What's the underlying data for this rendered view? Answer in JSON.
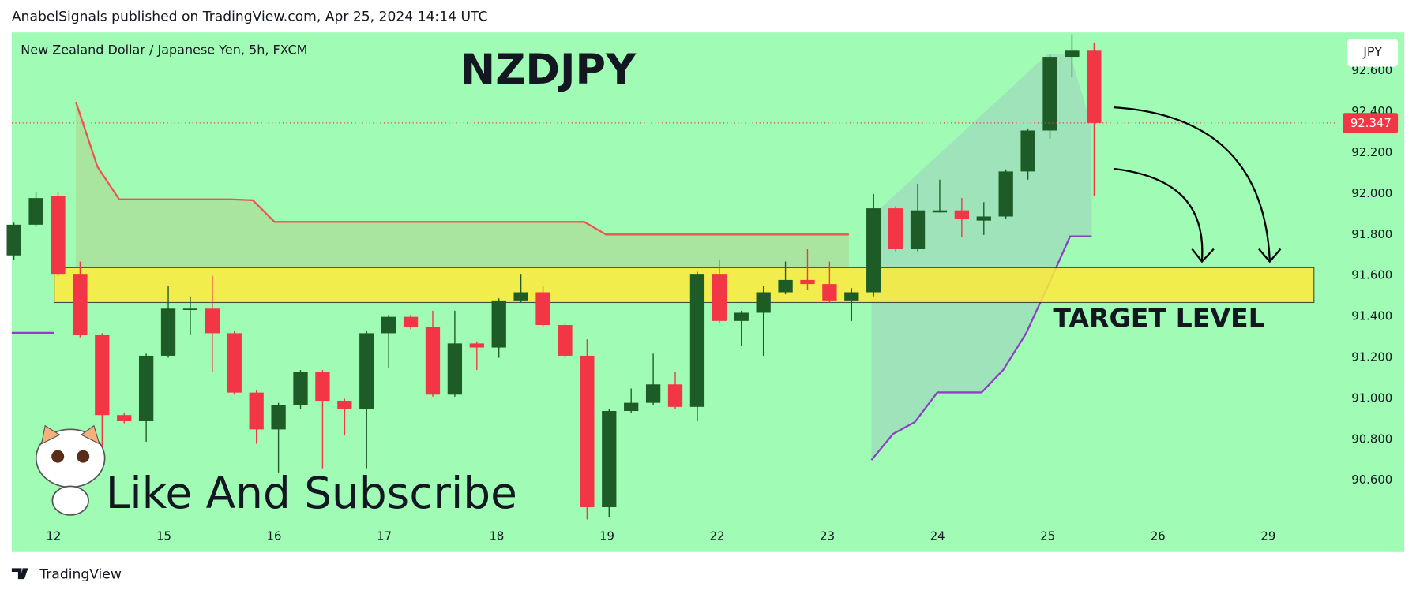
{
  "header": "AnabelSignals published on TradingView.com, Apr 25, 2024 14:14 UTC",
  "footer": "TradingView",
  "chart_data": {
    "type": "candlestick",
    "title": "NZDJPY",
    "subtitle": "New Zealand Dollar / Japanese Yen, 5h, FXCM",
    "currency": "JPY",
    "open": [
      91.7,
      91.85,
      91.99,
      91.61,
      91.31,
      90.92,
      90.89,
      91.21,
      91.44,
      91.44,
      91.32,
      91.03,
      90.85,
      90.97,
      91.13,
      90.99,
      90.95,
      91.32,
      91.4,
      91.35,
      91.02,
      91.27,
      91.25,
      91.48,
      91.52,
      91.36,
      91.21,
      90.47,
      90.94,
      90.98,
      91.07,
      90.96,
      91.61,
      91.38,
      91.42,
      91.52,
      91.58,
      91.56,
      91.48,
      91.52,
      91.93,
      91.73,
      91.91,
      91.92,
      91.87,
      91.89,
      92.11,
      92.31,
      92.67,
      92.7
    ],
    "high": [
      91.86,
      92.01,
      92.01,
      91.67,
      91.32,
      90.93,
      91.22,
      91.55,
      91.5,
      91.6,
      91.33,
      91.04,
      90.98,
      91.14,
      91.14,
      91.0,
      91.33,
      91.41,
      91.41,
      91.43,
      91.43,
      91.28,
      91.49,
      91.61,
      91.55,
      91.37,
      91.29,
      90.95,
      91.05,
      91.22,
      91.13,
      91.62,
      91.68,
      91.43,
      91.55,
      91.67,
      91.73,
      91.67,
      91.54,
      92.0,
      91.94,
      92.05,
      92.07,
      91.98,
      91.96,
      92.12,
      92.32,
      92.68,
      92.78,
      92.74
    ],
    "low": [
      91.68,
      91.84,
      91.6,
      91.3,
      90.77,
      90.88,
      90.79,
      91.2,
      91.31,
      91.13,
      91.02,
      90.78,
      90.64,
      90.95,
      90.66,
      90.82,
      90.66,
      91.15,
      91.34,
      91.01,
      91.01,
      91.14,
      91.2,
      91.47,
      91.35,
      91.2,
      90.41,
      90.42,
      90.93,
      90.97,
      90.95,
      90.89,
      91.37,
      91.26,
      91.21,
      91.51,
      91.53,
      91.47,
      91.38,
      91.5,
      91.72,
      91.72,
      91.91,
      91.79,
      91.8,
      91.88,
      92.07,
      92.27,
      92.57,
      91.99
    ],
    "close": [
      91.85,
      91.98,
      91.61,
      91.31,
      90.92,
      90.89,
      91.21,
      91.44,
      91.44,
      91.32,
      91.03,
      90.85,
      90.97,
      91.13,
      90.99,
      90.95,
      91.32,
      91.4,
      91.35,
      91.02,
      91.27,
      91.25,
      91.48,
      91.52,
      91.36,
      91.21,
      90.47,
      90.94,
      90.98,
      91.07,
      90.96,
      91.61,
      91.38,
      91.42,
      91.52,
      91.58,
      91.56,
      91.48,
      91.52,
      91.93,
      91.73,
      91.92,
      91.92,
      91.88,
      91.89,
      92.11,
      92.31,
      92.67,
      92.7,
      92.347
    ],
    "up_color": "#1d5c27",
    "down_color": "#f23645",
    "last_price": 92.347,
    "target_zone": [
      91.47,
      91.64
    ],
    "target_label": "TARGET LEVEL",
    "target_color": "#ffeb3b",
    "promo": "Like And Subscribe",
    "background": "#a0fcb4",
    "grid": false,
    "xlim": [
      -0.1,
      60
    ],
    "xticks": [
      {
        "value": 1.8,
        "label": "12"
      },
      {
        "value": 6.8,
        "label": "15"
      },
      {
        "value": 11.8,
        "label": "16"
      },
      {
        "value": 16.8,
        "label": "17"
      },
      {
        "value": 21.9,
        "label": "18"
      },
      {
        "value": 26.9,
        "label": "19"
      },
      {
        "value": 31.9,
        "label": "22"
      },
      {
        "value": 36.9,
        "label": "23"
      },
      {
        "value": 41.9,
        "label": "24"
      },
      {
        "value": 46.9,
        "label": "25"
      },
      {
        "value": 51.9,
        "label": "26"
      },
      {
        "value": 56.9,
        "label": "29"
      }
    ],
    "ylim": [
      90.251,
      92.789
    ],
    "yticks": [
      {
        "value": 90.6,
        "label": "90.600"
      },
      {
        "value": 90.8,
        "label": "90.800"
      },
      {
        "value": 91,
        "label": "91.000"
      },
      {
        "value": 91.2,
        "label": "91.200"
      },
      {
        "value": 91.4,
        "label": "91.400"
      },
      {
        "value": 91.6,
        "label": "91.600"
      },
      {
        "value": 91.8,
        "label": "91.800"
      },
      {
        "value": 92,
        "label": "92.000"
      },
      {
        "value": 92.2,
        "label": "92.200"
      },
      {
        "value": 92.4,
        "label": "92.400"
      },
      {
        "value": 92.6,
        "label": "92.600"
      }
    ]
  }
}
